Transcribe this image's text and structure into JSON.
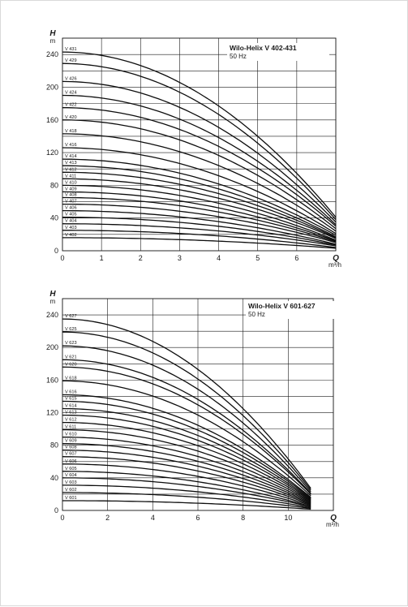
{
  "chart_data": [
    {
      "type": "line",
      "title": "Wilo-Helix V 402-431",
      "subtitle": "50 Hz",
      "ylabel": "H",
      "yunit": "m",
      "xlabel": "Q",
      "xunit": "m³/h",
      "xlim": [
        0,
        7
      ],
      "ylim": [
        0,
        260
      ],
      "xticks": [
        "0",
        "1",
        "2",
        "3",
        "4",
        "5",
        "6"
      ],
      "yticks": [
        "0",
        "40",
        "80",
        "120",
        "160",
        "200",
        "240"
      ],
      "grid": true,
      "qmax": 7,
      "series": [
        {
          "name": "V 431",
          "h0": 243,
          "hend": 41
        },
        {
          "name": "V 429",
          "h0": 229,
          "hend": 38
        },
        {
          "name": "V 426",
          "h0": 207,
          "hend": 35
        },
        {
          "name": "V 424",
          "h0": 190,
          "hend": 32
        },
        {
          "name": "V 422",
          "h0": 175,
          "hend": 30
        },
        {
          "name": "V 420",
          "h0": 160,
          "hend": 27
        },
        {
          "name": "V 418",
          "h0": 143,
          "hend": 24
        },
        {
          "name": "V 416",
          "h0": 126,
          "hend": 21
        },
        {
          "name": "V 414",
          "h0": 112,
          "hend": 19
        },
        {
          "name": "V 413",
          "h0": 104,
          "hend": 17
        },
        {
          "name": "V 412",
          "h0": 96,
          "hend": 16
        },
        {
          "name": "V 411",
          "h0": 88,
          "hend": 15
        },
        {
          "name": "V 410",
          "h0": 80,
          "hend": 13
        },
        {
          "name": "V 409",
          "h0": 72,
          "hend": 12
        },
        {
          "name": "V 408",
          "h0": 65,
          "hend": 11
        },
        {
          "name": "V 407",
          "h0": 57,
          "hend": 10
        },
        {
          "name": "V 406",
          "h0": 49,
          "hend": 8
        },
        {
          "name": "V 405",
          "h0": 41,
          "hend": 7
        },
        {
          "name": "V 404",
          "h0": 33,
          "hend": 6
        },
        {
          "name": "V 403",
          "h0": 25,
          "hend": 4
        },
        {
          "name": "V 402",
          "h0": 16,
          "hend": 3
        }
      ]
    },
    {
      "type": "line",
      "title": "Wilo-Helix V 601-627",
      "subtitle": "50 Hz",
      "ylabel": "H",
      "yunit": "m",
      "xlabel": "Q",
      "xunit": "m³/h",
      "xlim": [
        0,
        12
      ],
      "ylim": [
        0,
        260
      ],
      "xticks": [
        "0",
        "2",
        "4",
        "6",
        "8",
        "10"
      ],
      "yticks": [
        "0",
        "40",
        "80",
        "120",
        "160",
        "200",
        "240"
      ],
      "grid": true,
      "qmax": 11,
      "series": [
        {
          "name": "V 627",
          "h0": 235,
          "hend": 27
        },
        {
          "name": "V 625",
          "h0": 219,
          "hend": 25
        },
        {
          "name": "V 623",
          "h0": 202,
          "hend": 23
        },
        {
          "name": "V 621",
          "h0": 185,
          "hend": 21
        },
        {
          "name": "V 620",
          "h0": 176,
          "hend": 20
        },
        {
          "name": "V 618",
          "h0": 159,
          "hend": 18
        },
        {
          "name": "V 616",
          "h0": 142,
          "hend": 16
        },
        {
          "name": "V 615",
          "h0": 134,
          "hend": 15
        },
        {
          "name": "V 614",
          "h0": 125,
          "hend": 14
        },
        {
          "name": "V 613",
          "h0": 117,
          "hend": 13
        },
        {
          "name": "V 612",
          "h0": 108,
          "hend": 12
        },
        {
          "name": "V 611",
          "h0": 99,
          "hend": 11
        },
        {
          "name": "V 610",
          "h0": 90,
          "hend": 10
        },
        {
          "name": "V 609",
          "h0": 82,
          "hend": 9
        },
        {
          "name": "V 608",
          "h0": 74,
          "hend": 8
        },
        {
          "name": "V 607",
          "h0": 66,
          "hend": 7
        },
        {
          "name": "V 606",
          "h0": 57,
          "hend": 6
        },
        {
          "name": "V 605",
          "h0": 48,
          "hend": 5
        },
        {
          "name": "V 604",
          "h0": 40,
          "hend": 4.5
        },
        {
          "name": "V 603",
          "h0": 31,
          "hend": 3.5
        },
        {
          "name": "V 602",
          "h0": 22,
          "hend": 2.5
        },
        {
          "name": "V 601",
          "h0": 12,
          "hend": 1.5
        }
      ]
    }
  ]
}
